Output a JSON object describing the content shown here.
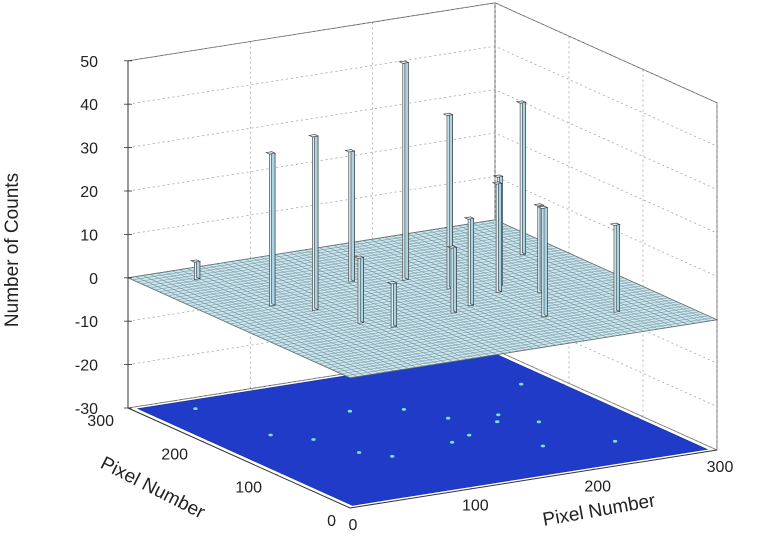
{
  "chart_data": {
    "type": "bar3d",
    "title": "",
    "zlabel": "Number of Counts",
    "xlabel": "Pixel Number",
    "ylabel": "Pixel Number",
    "zlim": [
      -30,
      50
    ],
    "z_ticks": [
      "50",
      "40",
      "30",
      "20",
      "10",
      "0",
      "-10",
      "-20",
      "-30"
    ],
    "x_ticks": [
      "0",
      "100",
      "200",
      "300"
    ],
    "y_ticks": [
      "300",
      "200",
      "100",
      "0"
    ],
    "xlim": [
      0,
      300
    ],
    "ylim": [
      0,
      300
    ],
    "grid": true,
    "surface_color": "#c8e6f0",
    "floor_color": "#1f3bc8",
    "peaks": [
      {
        "x": 40,
        "y": 275,
        "counts": 4
      },
      {
        "x": 50,
        "y": 190,
        "counts": 35
      },
      {
        "x": 70,
        "y": 165,
        "counts": 40
      },
      {
        "x": 80,
        "y": 120,
        "counts": 15
      },
      {
        "x": 95,
        "y": 100,
        "counts": 10
      },
      {
        "x": 130,
        "y": 215,
        "counts": 30
      },
      {
        "x": 150,
        "y": 110,
        "counts": 15
      },
      {
        "x": 165,
        "y": 200,
        "counts": 50
      },
      {
        "x": 170,
        "y": 120,
        "counts": 20
      },
      {
        "x": 180,
        "y": 165,
        "counts": 40
      },
      {
        "x": 200,
        "y": 70,
        "counts": 25
      },
      {
        "x": 205,
        "y": 140,
        "counts": 25
      },
      {
        "x": 215,
        "y": 155,
        "counts": 25
      },
      {
        "x": 230,
        "y": 125,
        "counts": 20
      },
      {
        "x": 250,
        "y": 55,
        "counts": 20
      },
      {
        "x": 270,
        "y": 215,
        "counts": 35
      }
    ]
  }
}
